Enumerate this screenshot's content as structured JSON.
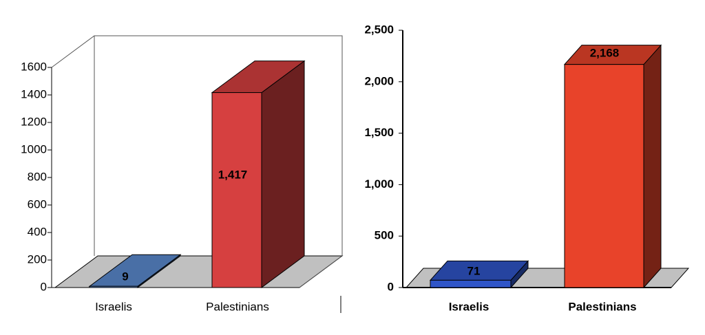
{
  "chart_data": [
    {
      "type": "bar3d",
      "categories": [
        "Israelis",
        "Palestinians"
      ],
      "values": [
        9,
        1417
      ],
      "value_labels": [
        "9",
        "1,417"
      ],
      "colors": [
        "#5b8bd0",
        "#d64040"
      ],
      "ylim": [
        0,
        1600
      ],
      "yticks": [
        0,
        200,
        400,
        600,
        800,
        1000,
        1200,
        1400,
        1600
      ]
    },
    {
      "type": "bar3d",
      "categories": [
        "Israelis",
        "Palestinians"
      ],
      "values": [
        71,
        2168
      ],
      "value_labels": [
        "71",
        "2,168"
      ],
      "colors": [
        "#2f55c8",
        "#e8432a"
      ],
      "ylim": [
        0,
        2500
      ],
      "yticks": [
        0,
        500,
        {
          "value": 1000,
          "label": "1,000"
        },
        {
          "value": 1500,
          "label": "1,500"
        },
        {
          "value": 2000,
          "label": "2,000"
        },
        {
          "value": 2500,
          "label": "2,500"
        }
      ]
    }
  ]
}
